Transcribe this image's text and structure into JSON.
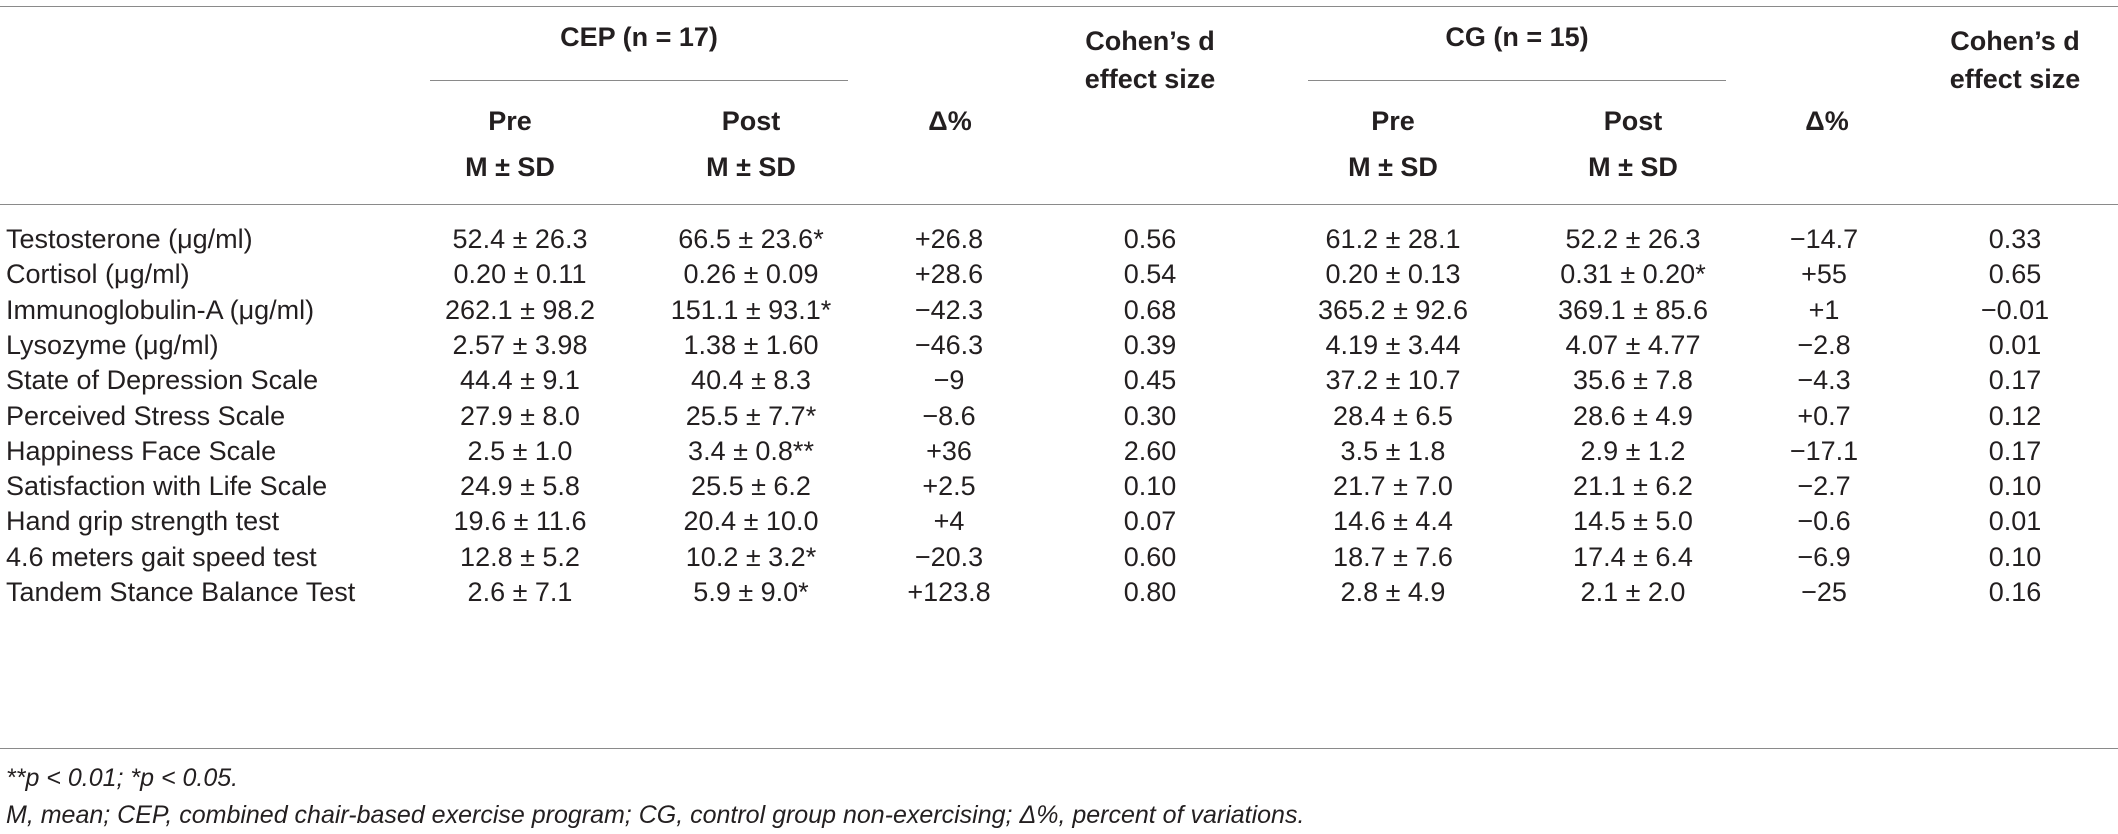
{
  "header": {
    "cep_group": "CEP (n = 17)",
    "cg_group": "CG (n = 15)",
    "pre_label": "Pre",
    "post_label": "Post",
    "msd_label": "M ± SD",
    "delta_label": "Δ%",
    "cohen_line1": "Cohen’s d",
    "cohen_line2": "effect size"
  },
  "rows": [
    {
      "label": "Testosterone (μg/ml)",
      "cep_pre": "52.4 ± 26.3",
      "cep_post": "66.5 ± 23.6*",
      "cep_delta": "+26.8",
      "cep_d": "0.56",
      "cg_pre": "61.2 ± 28.1",
      "cg_post": "52.2 ± 26.3",
      "cg_delta": "−14.7",
      "cg_d": "0.33"
    },
    {
      "label": "Cortisol (μg/ml)",
      "cep_pre": "0.20 ± 0.11",
      "cep_post": "0.26 ± 0.09",
      "cep_delta": "+28.6",
      "cep_d": "0.54",
      "cg_pre": "0.20 ± 0.13",
      "cg_post": "0.31 ± 0.20*",
      "cg_delta": "+55",
      "cg_d": "0.65"
    },
    {
      "label": "Immunoglobulin-A (μg/ml)",
      "cep_pre": "262.1 ± 98.2",
      "cep_post": "151.1 ± 93.1*",
      "cep_delta": "−42.3",
      "cep_d": "0.68",
      "cg_pre": "365.2 ± 92.6",
      "cg_post": "369.1 ± 85.6",
      "cg_delta": "+1",
      "cg_d": "−0.01"
    },
    {
      "label": "Lysozyme (μg/ml)",
      "cep_pre": "2.57 ± 3.98",
      "cep_post": "1.38 ± 1.60",
      "cep_delta": "−46.3",
      "cep_d": "0.39",
      "cg_pre": "4.19 ± 3.44",
      "cg_post": "4.07 ± 4.77",
      "cg_delta": "−2.8",
      "cg_d": "0.01"
    },
    {
      "label": "State of Depression Scale",
      "cep_pre": "44.4 ± 9.1",
      "cep_post": "40.4 ± 8.3",
      "cep_delta": "−9",
      "cep_d": "0.45",
      "cg_pre": "37.2 ± 10.7",
      "cg_post": "35.6 ± 7.8",
      "cg_delta": "−4.3",
      "cg_d": "0.17"
    },
    {
      "label": "Perceived Stress Scale",
      "cep_pre": "27.9 ± 8.0",
      "cep_post": "25.5 ± 7.7*",
      "cep_delta": "−8.6",
      "cep_d": "0.30",
      "cg_pre": "28.4 ± 6.5",
      "cg_post": "28.6 ± 4.9",
      "cg_delta": "+0.7",
      "cg_d": "0.12"
    },
    {
      "label": "Happiness Face Scale",
      "cep_pre": "2.5 ± 1.0",
      "cep_post": "3.4 ± 0.8**",
      "cep_delta": "+36",
      "cep_d": "2.60",
      "cg_pre": "3.5 ± 1.8",
      "cg_post": "2.9 ± 1.2",
      "cg_delta": "−17.1",
      "cg_d": "0.17"
    },
    {
      "label": "Satisfaction with Life Scale",
      "cep_pre": "24.9 ± 5.8",
      "cep_post": "25.5 ± 6.2",
      "cep_delta": "+2.5",
      "cep_d": "0.10",
      "cg_pre": "21.7 ± 7.0",
      "cg_post": "21.1 ± 6.2",
      "cg_delta": "−2.7",
      "cg_d": "0.10"
    },
    {
      "label": "Hand grip strength test",
      "cep_pre": "19.6 ± 11.6",
      "cep_post": "20.4 ± 10.0",
      "cep_delta": "+4",
      "cep_d": "0.07",
      "cg_pre": "14.6 ± 4.4",
      "cg_post": "14.5 ± 5.0",
      "cg_delta": "−0.6",
      "cg_d": "0.01"
    },
    {
      "label": "4.6 meters gait speed test",
      "cep_pre": "12.8 ± 5.2",
      "cep_post": "10.2 ± 3.2*",
      "cep_delta": "−20.3",
      "cep_d": "0.60",
      "cg_pre": "18.7 ± 7.6",
      "cg_post": "17.4 ± 6.4",
      "cg_delta": "−6.9",
      "cg_d": "0.10"
    },
    {
      "label": "Tandem Stance Balance Test",
      "cep_pre": "2.6 ± 7.1",
      "cep_post": "5.9 ± 9.0*",
      "cep_delta": "+123.8",
      "cep_d": "0.80",
      "cg_pre": "2.8 ± 4.9",
      "cg_post": "2.1 ± 2.0",
      "cg_delta": "−25",
      "cg_d": "0.16"
    }
  ],
  "footnotes": {
    "significance": "**p < 0.01; *p < 0.05.",
    "abbreviations": "M, mean; CEP, combined chair-based exercise program; CG, control group non-exercising; Δ%, percent of variations."
  }
}
